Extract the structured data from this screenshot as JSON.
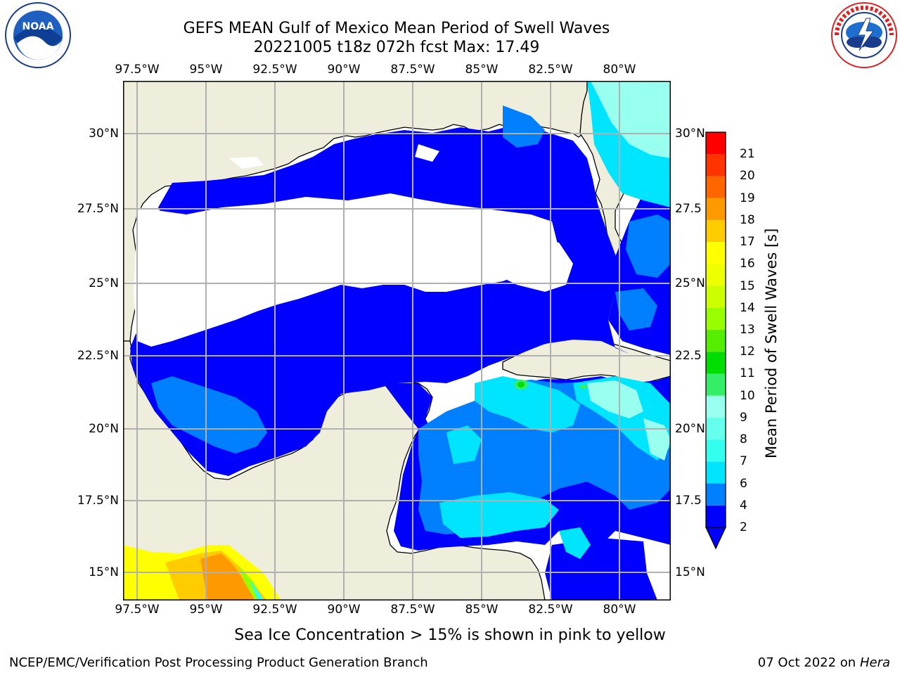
{
  "header": {
    "title_line1": "GEFS MEAN Gulf of Mexico Mean Period of Swell Waves",
    "title_line2": "20221005 t18z 072h fcst   Max: 17.49"
  },
  "logos": {
    "left": "noaa-logo",
    "right": "national-weather-service-logo"
  },
  "map": {
    "lon_ticks": [
      "97.5°W",
      "95°W",
      "92.5°W",
      "90°W",
      "87.5°W",
      "85°W",
      "82.5°W",
      "80°W"
    ],
    "lat_ticks_left": [
      "30°N",
      "27.5°N",
      "25°N",
      "22.5°N",
      "20°N",
      "17.5°N",
      "15°N"
    ],
    "lat_ticks_right": [
      "30°N",
      "27.5",
      "25°N",
      "22.5",
      "20°N",
      "17.5",
      "15°N"
    ],
    "colors": {
      "land": "#efeddc",
      "grid": "#b0b0b0",
      "coast": "#000000"
    }
  },
  "colorbar": {
    "label": "Mean Period of Swell Waves [s]",
    "ticks": [
      "2",
      "4",
      "6",
      "7",
      "8",
      "9",
      "10",
      "11",
      "12",
      "13",
      "14",
      "15",
      "16",
      "17",
      "18",
      "19",
      "20",
      "21"
    ],
    "colors": [
      "#0000ff",
      "#007fff",
      "#00e5ff",
      "#33ffee",
      "#66ffee",
      "#99ffee",
      "#33ee66",
      "#00dd00",
      "#55ee00",
      "#99ff00",
      "#ccff00",
      "#eeff00",
      "#ffff00",
      "#ffcc00",
      "#ff9900",
      "#ff6600",
      "#ff3300",
      "#ff0000"
    ]
  },
  "notes": {
    "ice": "Sea Ice Concentration > 15% is shown in pink to yellow",
    "branch": "NCEP/EMC/Verification Post Processing Product Generation Branch",
    "date": "07 Oct 2022 on",
    "host": "Hera"
  }
}
